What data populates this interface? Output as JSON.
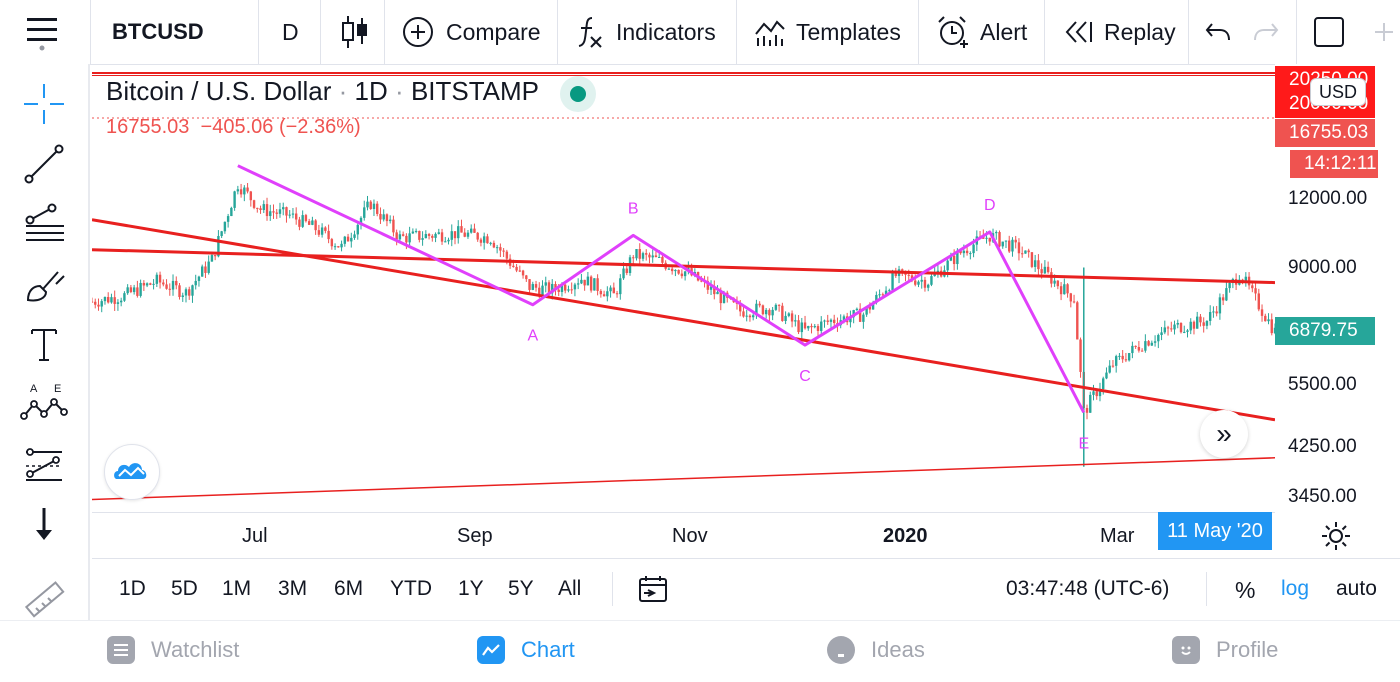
{
  "toolbar": {
    "symbol": "BTCUSD",
    "interval": "D",
    "compare_label": "Compare",
    "indicators_label": "Indicators",
    "templates_label": "Templates",
    "alert_label": "Alert",
    "replay_label": "Replay"
  },
  "legend": {
    "name": "Bitcoin / U.S. Dollar",
    "interval": "1D",
    "exchange": "BITSTAMP",
    "price": "16755.03",
    "change": "−405.06 (−2.36%)"
  },
  "price_axis": {
    "currency_badge": "USD",
    "levels": [
      "12000.00",
      "9000.00",
      "5500.00",
      "4250.00",
      "3450.00"
    ],
    "tag_top": "20250.00",
    "tag_second": "20000.00",
    "tag_last_price": "16755.03",
    "tag_countdown": "14:12:11",
    "tag_current": "6879.75"
  },
  "time_axis": {
    "labels": [
      "Jul",
      "Sep",
      "Nov",
      "2020",
      "Mar"
    ],
    "crosshair_date": "11 May '20"
  },
  "range_bar": {
    "ranges": [
      "1D",
      "5D",
      "1M",
      "3M",
      "6M",
      "YTD",
      "1Y",
      "5Y",
      "All"
    ],
    "clock": "03:47:48 (UTC-6)",
    "percent_label": "%",
    "log_label": "log",
    "auto_label": "auto"
  },
  "bottom_nav": {
    "watchlist": "Watchlist",
    "chart": "Chart",
    "ideas": "Ideas",
    "profile": "Profile"
  },
  "colors": {
    "up": "#26a69a",
    "down": "#ef5350",
    "pattern": "#e040fb",
    "trendline": "#e8201f",
    "accent": "#2196f3"
  },
  "chart_data": {
    "type": "candlestick",
    "scale": "log",
    "x_range": [
      "2019-05-12",
      "2020-05-11"
    ],
    "y_ticks": [
      12000,
      9000,
      5500,
      4250,
      3450
    ],
    "pattern_points": [
      {
        "label": "",
        "date": "2019-06-26",
        "price": 13800
      },
      {
        "label": "A",
        "date": "2019-09-25",
        "price": 7700
      },
      {
        "label": "B",
        "date": "2019-10-26",
        "price": 10300
      },
      {
        "label": "C",
        "date": "2019-12-18",
        "price": 6500
      },
      {
        "label": "D",
        "date": "2020-02-13",
        "price": 10450
      },
      {
        "label": "E",
        "date": "2020-03-13",
        "price": 4900
      }
    ],
    "pattern_labels": [
      "A",
      "B",
      "C",
      "D",
      "E"
    ],
    "series": [
      {
        "dates": [
          "2019-05-12",
          "2019-05-22",
          "2019-06-01",
          "2019-06-10",
          "2019-06-18",
          "2019-06-26",
          "2019-07-03",
          "2019-07-12",
          "2019-07-20",
          "2019-07-28",
          "2019-08-06",
          "2019-08-15",
          "2019-08-24",
          "2019-09-02",
          "2019-09-12",
          "2019-09-24",
          "2019-10-01",
          "2019-10-10",
          "2019-10-20",
          "2019-10-26",
          "2019-11-02",
          "2019-11-12",
          "2019-11-20",
          "2019-11-28",
          "2019-12-08",
          "2019-12-18",
          "2019-12-26",
          "2020-01-05",
          "2020-01-15",
          "2020-01-25",
          "2020-02-05",
          "2020-02-13",
          "2020-02-22",
          "2020-03-02",
          "2020-03-10",
          "2020-03-13",
          "2020-03-22",
          "2020-04-01",
          "2020-04-10",
          "2020-04-20",
          "2020-04-30",
          "2020-05-11"
        ],
        "close": [
          7800,
          8000,
          8500,
          8100,
          9300,
          12800,
          11500,
          11200,
          10600,
          9800,
          11800,
          10200,
          10300,
          10400,
          10200,
          8300,
          8200,
          8600,
          8000,
          9500,
          9300,
          8800,
          8100,
          7500,
          7600,
          6900,
          7200,
          7400,
          8700,
          8500,
          9700,
          10300,
          9700,
          8700,
          7900,
          4900,
          6000,
          6600,
          7000,
          7200,
          8800,
          6879.75
        ]
      }
    ]
  }
}
